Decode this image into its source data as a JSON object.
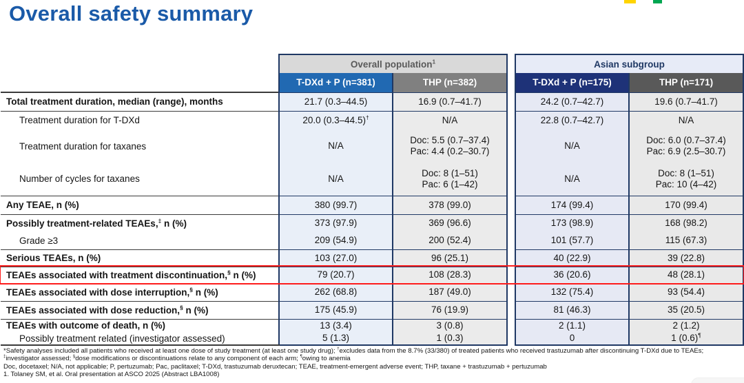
{
  "title": "Overall safety summary",
  "colors": {
    "title_blue": "#1a5aa8",
    "navy_border": "#1f3864",
    "overall_group_bg": "#d9d9d9",
    "overall_group_text": "#595959",
    "asian_group_bg": "#e7ebf7",
    "asian_group_text": "#1f3864",
    "tdxd_overall_header_bg": "#2169b2",
    "thp_overall_header_bg": "#808080",
    "tdxd_asian_header_bg": "#1e3278",
    "thp_asian_header_bg": "#595959",
    "tdxd_column_bg": "#e9eff8",
    "thp_column_bg": "#ebebeb",
    "highlight_red": "#fe1b1b",
    "logo_fragment_yellow": "#ffd400",
    "logo_fragment_green": "#00a651"
  },
  "table": {
    "groups": [
      {
        "label": "Overall population",
        "sup": "1"
      },
      {
        "label": "Asian subgroup",
        "sup": ""
      }
    ],
    "columns": [
      "T-DXd + P (n=381)",
      "THP (n=382)",
      "T-DXd + P (n=175)",
      "THP (n=171)"
    ],
    "rows": [
      {
        "label": "Total treatment duration, median (range), months",
        "bold": true,
        "indent": false,
        "line_above": true,
        "highlight": false,
        "values": [
          [
            "21.7 (0.3–44.5)"
          ],
          [
            "16.9 (0.7–41.7)"
          ],
          [
            "24.2 (0.7–42.7)"
          ],
          [
            "19.6 (0.7–41.7)"
          ]
        ]
      },
      {
        "label": "Treatment duration for T-DXd",
        "bold": false,
        "indent": true,
        "line_above": true,
        "highlight": false,
        "values": [
          [
            "20.0 (0.3–44.5)†"
          ],
          [
            "N/A"
          ],
          [
            "22.8 (0.7–42.7)"
          ],
          [
            "N/A"
          ]
        ]
      },
      {
        "label": "Treatment duration for taxanes",
        "bold": false,
        "indent": true,
        "line_above": false,
        "highlight": false,
        "values": [
          [
            "N/A"
          ],
          [
            "Doc: 5.5 (0.7–37.4)",
            "Pac: 4.4 (0.2–30.7)"
          ],
          [
            "N/A"
          ],
          [
            "Doc: 6.0 (0.7–37.4)",
            "Pac: 6.9 (2.5–30.7)"
          ]
        ]
      },
      {
        "label": "Number of cycles for taxanes",
        "bold": false,
        "indent": true,
        "line_above": false,
        "highlight": false,
        "values": [
          [
            "N/A"
          ],
          [
            "Doc: 8 (1–51)",
            "Pac: 6 (1–42)"
          ],
          [
            "N/A"
          ],
          [
            "Doc: 8 (1–51)",
            "Pac: 10 (4–42)"
          ]
        ]
      },
      {
        "label": "Any TEAE, n (%)",
        "bold": true,
        "indent": false,
        "line_above": true,
        "highlight": false,
        "values": [
          [
            "380 (99.7)"
          ],
          [
            "378 (99.0)"
          ],
          [
            "174 (99.4)"
          ],
          [
            "170 (99.4)"
          ]
        ]
      },
      {
        "label": "Possibly treatment-related TEAEs,‡ n (%)",
        "bold": true,
        "indent": false,
        "line_above": true,
        "highlight": false,
        "values": [
          [
            "373 (97.9)"
          ],
          [
            "369 (96.6)"
          ],
          [
            "173 (98.9)"
          ],
          [
            "168 (98.2)"
          ]
        ]
      },
      {
        "label": "Grade ≥3",
        "bold": false,
        "indent": true,
        "line_above": false,
        "highlight": false,
        "values": [
          [
            "209 (54.9)"
          ],
          [
            "200 (52.4)"
          ],
          [
            "101 (57.7)"
          ],
          [
            "115 (67.3)"
          ]
        ]
      },
      {
        "label": "Serious TEAEs, n (%)",
        "bold": true,
        "indent": false,
        "line_above": true,
        "highlight": false,
        "values": [
          [
            "103 (27.0)"
          ],
          [
            "96 (25.1)"
          ],
          [
            "40 (22.9)"
          ],
          [
            "39 (22.8)"
          ]
        ]
      },
      {
        "label": "TEAEs associated with treatment discontinuation,§ n (%)",
        "bold": true,
        "indent": false,
        "line_above": true,
        "highlight": true,
        "values": [
          [
            "79 (20.7)"
          ],
          [
            "108 (28.3)"
          ],
          [
            "36 (20.6)"
          ],
          [
            "48 (28.1)"
          ]
        ]
      },
      {
        "label": "TEAEs associated with dose interruption,§ n (%)",
        "bold": true,
        "indent": false,
        "line_above": true,
        "highlight": false,
        "values": [
          [
            "262 (68.8)"
          ],
          [
            "187 (49.0)"
          ],
          [
            "132 (75.4)"
          ],
          [
            "93 (54.4)"
          ]
        ]
      },
      {
        "label": "TEAEs associated with dose reduction,§ n (%)",
        "bold": true,
        "indent": false,
        "line_above": true,
        "highlight": false,
        "values": [
          [
            "175 (45.9)"
          ],
          [
            "76 (19.9)"
          ],
          [
            "81 (46.3)"
          ],
          [
            "35 (20.5)"
          ]
        ]
      },
      {
        "label": "TEAEs with outcome of death, n (%)",
        "bold": true,
        "indent": false,
        "line_above": true,
        "highlight": false,
        "values": [
          [
            "13 (3.4)"
          ],
          [
            "3 (0.8)"
          ],
          [
            "2 (1.1)"
          ],
          [
            "2 (1.2)"
          ]
        ]
      },
      {
        "label": "Possibly treatment related (investigator assessed)",
        "bold": false,
        "indent": true,
        "line_above": false,
        "highlight": false,
        "values": [
          [
            "5 (1.3)"
          ],
          [
            "1 (0.3)"
          ],
          [
            "0"
          ],
          [
            "1 (0.6)¶"
          ]
        ]
      }
    ]
  },
  "footnotes": [
    "*Safety analyses included all patients who received at least one dose of study treatment (at least one study drug); †excludes data from the 8.7% (33/380) of treated patients who received trastuzumab after discontinuing T-DXd due to TEAEs;",
    "‡investigator assessed; §dose modifications or discontinuations relate to any component of each arm; ¶owing to anemia",
    "Doc, docetaxel; N/A, not applicable; P, pertuzumab; Pac, paclitaxel; T-DXd, trastuzumab deruxtecan; TEAE, treatment-emergent adverse event; THP, taxane + trastuzumab + pertuzumab",
    "1. Tolaney SM, et al. Oral presentation at ASCO 2025 (Abstract LBA1008)"
  ]
}
